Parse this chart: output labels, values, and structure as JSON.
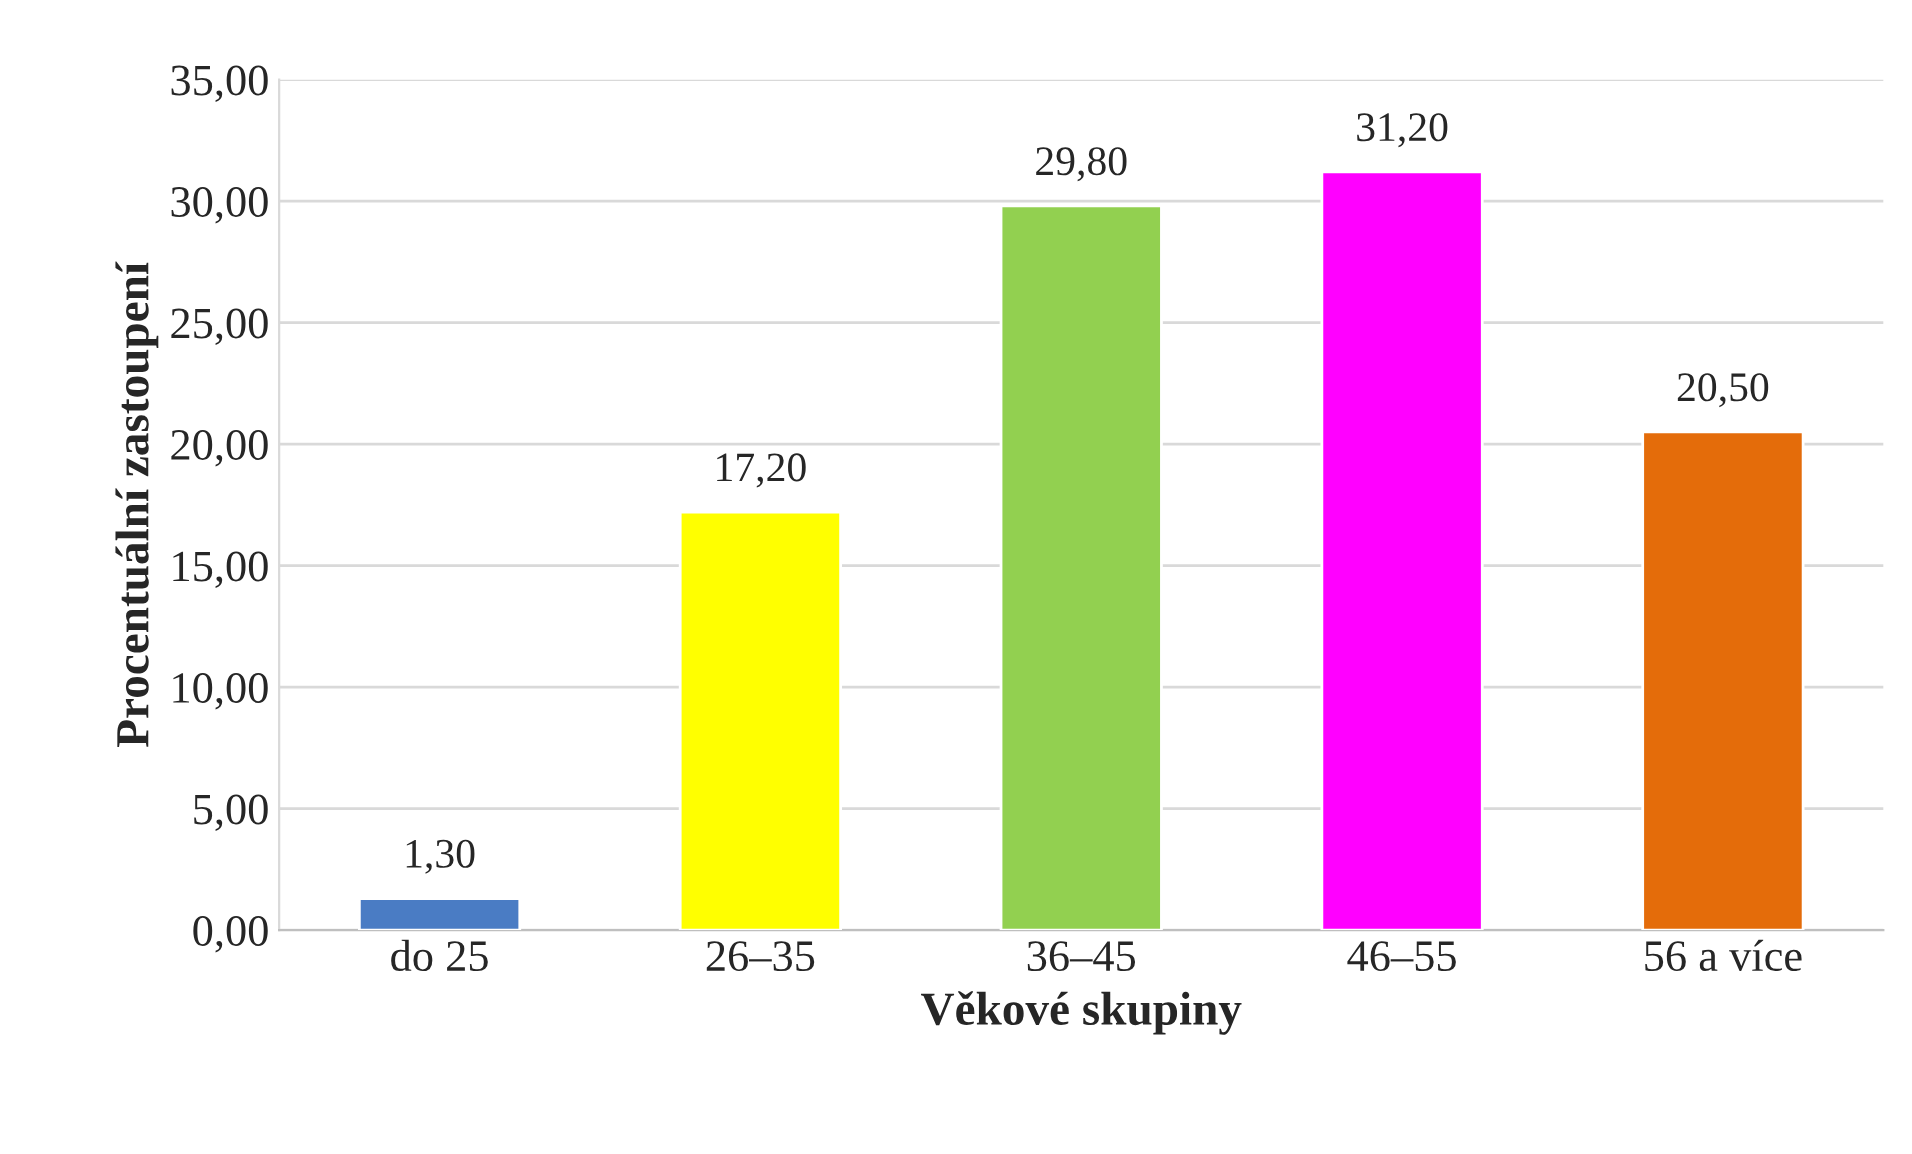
{
  "chart_data": {
    "type": "bar",
    "xlabel": "Věkové skupiny",
    "ylabel": "Procentuální zastoupení",
    "categories": [
      "do 25",
      "26–35",
      "36–45",
      "46–55",
      "56 a více"
    ],
    "values": [
      1.3,
      17.2,
      29.8,
      31.2,
      20.5
    ],
    "colors": [
      "#4a7cc4",
      "#ffff00",
      "#92d050",
      "#ff00ff",
      "#e46c0a"
    ],
    "value_labels": [
      "1,30",
      "17,20",
      "29,80",
      "31,20",
      "20,50"
    ],
    "ylim": [
      0,
      35
    ],
    "yticks": [
      {
        "value": 0,
        "label": "0,00"
      },
      {
        "value": 5,
        "label": "5,00"
      },
      {
        "value": 10,
        "label": "10,00"
      },
      {
        "value": 15,
        "label": "15,00"
      },
      {
        "value": 20,
        "label": "20,00"
      },
      {
        "value": 25,
        "label": "25,00"
      },
      {
        "value": 30,
        "label": "30,00"
      },
      {
        "value": 35,
        "label": "35,00"
      }
    ],
    "grid": "y"
  }
}
